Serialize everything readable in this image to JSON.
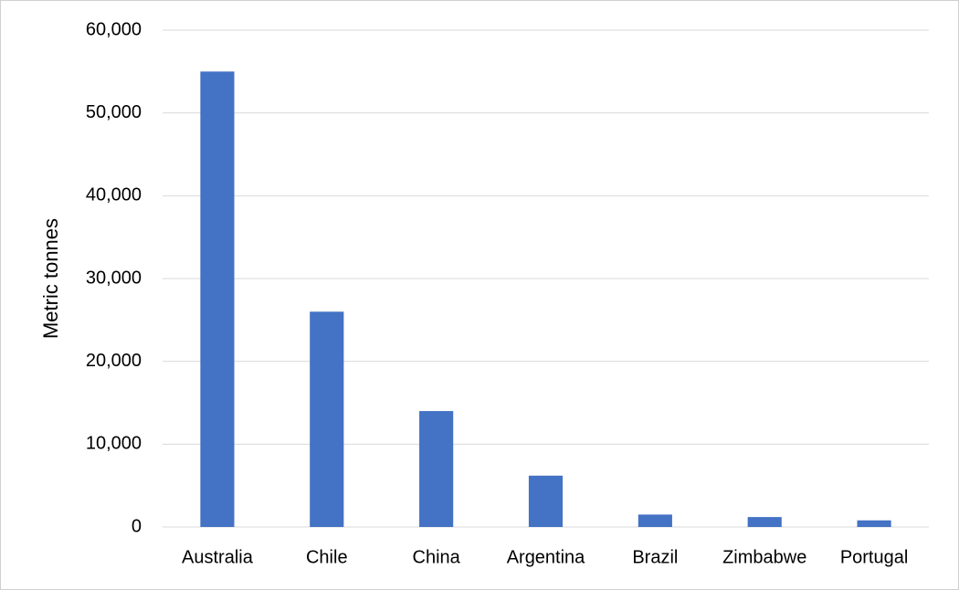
{
  "chart_data": {
    "type": "bar",
    "y_label": "Metric tonnes",
    "categories": [
      "Australia",
      "Chile",
      "China",
      "Argentina",
      "Brazil",
      "Zimbabwe",
      "Portugal"
    ],
    "values": [
      55000,
      26000,
      14000,
      6200,
      1500,
      1200,
      800
    ],
    "color": "#4472c4",
    "ylim": [
      0,
      60000
    ],
    "yticks": [
      0,
      {
        "value": 10000,
        "label": "10,000"
      },
      {
        "value": 20000,
        "label": "20,000"
      },
      {
        "value": 30000,
        "label": "30,000"
      },
      {
        "value": 40000,
        "label": "40,000"
      },
      {
        "value": 50000,
        "label": "50,000"
      },
      {
        "value": 60000,
        "label": "60,000"
      }
    ],
    "grid": true
  }
}
